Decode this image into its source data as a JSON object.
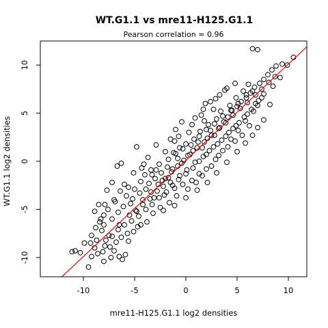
{
  "chart_data": {
    "type": "scatter",
    "title": "WT.G1.1 vs mre11-H125.G1.1",
    "subtitle": "Pearson correlation =  0.96",
    "xlabel": "mre11-H125.G1.1 log2 densities",
    "ylabel": "WT.G1.1 log2 densities",
    "xlim": [
      -14.2,
      11.8
    ],
    "ylim": [
      -12.0,
      12.5
    ],
    "x_ticks": [
      -10,
      -5,
      0,
      5,
      10
    ],
    "y_ticks": [
      -10,
      -5,
      0,
      5,
      10
    ],
    "x_tick_labels": [
      "-10",
      "-5",
      "0",
      "5",
      "10"
    ],
    "y_tick_labels": [
      "-10",
      "-5",
      "0",
      "5",
      "10"
    ],
    "grid": false,
    "point_style": "open-circle",
    "point_color": "#000000",
    "fit_line": {
      "slope": 1.0,
      "intercept": 0.1,
      "color": "#ff0000"
    },
    "series": [
      {
        "points": [
          [
            -9.5,
            -11.0
          ],
          [
            -10.3,
            -9.5
          ],
          [
            -9.2,
            -9.9
          ],
          [
            -8.0,
            -10.4
          ],
          [
            -7.3,
            -10.0
          ],
          [
            -6.2,
            -10.2
          ],
          [
            -6.5,
            -9.9
          ],
          [
            -8.6,
            -9.6
          ],
          [
            -9.9,
            -8.5
          ],
          [
            -7.9,
            -8.8
          ],
          [
            -8.7,
            -8.2
          ],
          [
            -7.0,
            -9.3
          ],
          [
            -5.9,
            -9.7
          ],
          [
            -8.2,
            -7.2
          ],
          [
            -7.5,
            -7.7
          ],
          [
            -9.2,
            -7.7
          ],
          [
            -9.3,
            -8.5
          ],
          [
            -8.0,
            -5.6
          ],
          [
            -8.5,
            -4.5
          ],
          [
            -7.9,
            -4.5
          ],
          [
            -7.0,
            -4.0
          ],
          [
            -7.7,
            -3.0
          ],
          [
            -7.2,
            -2.2
          ],
          [
            -4.8,
            1.5
          ],
          [
            -6.3,
            -0.2
          ],
          [
            -6.7,
            -0.5
          ],
          [
            -5.1,
            -1.2
          ],
          [
            -4.3,
            -0.7
          ],
          [
            -6.0,
            -2.4
          ],
          [
            -5.6,
            -2.7
          ],
          [
            -6.4,
            -3.1
          ],
          [
            -5.2,
            -3.9
          ],
          [
            -3.9,
            -2.9
          ],
          [
            -4.4,
            -2.1
          ],
          [
            -3.3,
            -1.4
          ],
          [
            -2.9,
            -0.9
          ],
          [
            -2.3,
            -2.0
          ],
          [
            -1.8,
            -0.6
          ],
          [
            -1.3,
            -0.8
          ],
          [
            -0.8,
            0.3
          ],
          [
            -0.4,
            -0.2
          ],
          [
            0.2,
            0.6
          ],
          [
            0.7,
            1.1
          ],
          [
            1.2,
            2.0
          ],
          [
            1.6,
            1.4
          ],
          [
            2.1,
            2.4
          ],
          [
            2.4,
            3.2
          ],
          [
            2.8,
            2.7
          ],
          [
            3.3,
            3.5
          ],
          [
            3.7,
            4.1
          ],
          [
            4.1,
            4.6
          ],
          [
            4.5,
            5.3
          ],
          [
            5.0,
            5.7
          ],
          [
            5.4,
            6.2
          ],
          [
            5.9,
            6.6
          ],
          [
            6.3,
            7.1
          ],
          [
            6.7,
            7.7
          ],
          [
            7.2,
            8.1
          ],
          [
            7.6,
            8.5
          ],
          [
            8.0,
            9.0
          ],
          [
            8.4,
            9.5
          ],
          [
            8.8,
            9.9
          ],
          [
            9.4,
            10.1
          ],
          [
            9.9,
            10.0
          ],
          [
            10.5,
            10.8
          ],
          [
            6.5,
            11.7
          ],
          [
            7.0,
            11.6
          ],
          [
            -2.9,
            1.7
          ],
          [
            -1.5,
            2.3
          ],
          [
            -0.7,
            2.6
          ],
          [
            -1.1,
            2.1
          ],
          [
            0.3,
            3.0
          ],
          [
            1.8,
            4.2
          ],
          [
            2.7,
            5.4
          ],
          [
            1.9,
            6.0
          ],
          [
            3.8,
            7.4
          ],
          [
            2.9,
            6.5
          ],
          [
            1.5,
            4.8
          ],
          [
            0.6,
            3.8
          ],
          [
            -2.0,
            1.0
          ],
          [
            -3.7,
            0.4
          ],
          [
            -4.1,
            -0.3
          ],
          [
            -3.1,
            -3.8
          ],
          [
            -2.1,
            -3.5
          ],
          [
            -1.1,
            -2.8
          ],
          [
            -0.3,
            -2.4
          ],
          [
            0.6,
            -2.0
          ],
          [
            1.3,
            -1.3
          ],
          [
            2.0,
            -0.8
          ],
          [
            2.9,
            0.2
          ],
          [
            3.6,
            1.1
          ],
          [
            4.4,
            2.3
          ],
          [
            5.1,
            3.2
          ],
          [
            5.8,
            4.2
          ],
          [
            6.6,
            5.2
          ],
          [
            7.1,
            6.3
          ],
          [
            7.6,
            7.0
          ],
          [
            8.5,
            7.8
          ],
          [
            9.2,
            8.7
          ],
          [
            -5.7,
            -7.5
          ],
          [
            -4.7,
            -6.8
          ],
          [
            -3.8,
            -6.3
          ],
          [
            -3.2,
            -5.4
          ],
          [
            -2.5,
            -4.8
          ],
          [
            -1.6,
            -4.3
          ],
          [
            -0.9,
            -3.6
          ],
          [
            0.2,
            -2.9
          ],
          [
            1.0,
            -2.2
          ],
          [
            1.6,
            -1.5
          ],
          [
            2.5,
            -0.5
          ],
          [
            3.2,
            0.6
          ],
          [
            4.1,
            1.5
          ],
          [
            4.8,
            2.1
          ],
          [
            5.5,
            2.7
          ],
          [
            6.2,
            3.7
          ],
          [
            7.6,
            4.3
          ],
          [
            8.2,
            5.9
          ],
          [
            -7.6,
            -5.0
          ],
          [
            -6.9,
            -4.2
          ],
          [
            -5.8,
            -3.6
          ],
          [
            -5.0,
            -2.9
          ],
          [
            -4.5,
            -3.3
          ],
          [
            -3.6,
            -2.3
          ],
          [
            -3.0,
            -1.8
          ],
          [
            -2.4,
            -1.2
          ],
          [
            -1.7,
            -1.7
          ],
          [
            -1.2,
            0.9
          ],
          [
            -0.6,
            1.4
          ],
          [
            0.0,
            1.8
          ],
          [
            0.8,
            2.3
          ],
          [
            1.4,
            3.1
          ],
          [
            2.2,
            3.8
          ],
          [
            3.0,
            4.4
          ],
          [
            3.4,
            5.2
          ],
          [
            4.3,
            5.8
          ],
          [
            4.9,
            6.6
          ],
          [
            5.6,
            7.3
          ],
          [
            6.1,
            8.0
          ],
          [
            -8.8,
            -6.9
          ],
          [
            -8.4,
            -6.3
          ],
          [
            -7.2,
            -6.0
          ],
          [
            -6.6,
            -5.3
          ],
          [
            -6.1,
            -4.7
          ],
          [
            -5.4,
            -4.4
          ],
          [
            -4.9,
            -5.1
          ],
          [
            -4.2,
            -4.5
          ],
          [
            -3.5,
            -3.9
          ],
          [
            -2.8,
            -3.1
          ],
          [
            -2.2,
            -2.6
          ],
          [
            -1.5,
            -2.2
          ],
          [
            -0.6,
            -1.5
          ],
          [
            0.1,
            -0.9
          ],
          [
            0.9,
            -0.1
          ],
          [
            1.7,
            0.5
          ],
          [
            2.3,
            1.1
          ],
          [
            3.1,
            1.8
          ],
          [
            3.9,
            2.6
          ],
          [
            4.6,
            3.4
          ],
          [
            5.2,
            4.0
          ],
          [
            6.0,
            4.9
          ],
          [
            6.8,
            6.0
          ],
          [
            7.4,
            6.6
          ],
          [
            -7.8,
            -8.2
          ],
          [
            -7.2,
            -7.8
          ],
          [
            -6.6,
            -7.1
          ],
          [
            -6.0,
            -6.6
          ],
          [
            -5.3,
            -6.2
          ],
          [
            -4.6,
            -5.7
          ],
          [
            -3.9,
            -5.0
          ],
          [
            -3.3,
            -4.5
          ],
          [
            -2.6,
            -3.8
          ],
          [
            -1.9,
            -3.2
          ],
          [
            -1.3,
            -2.5
          ],
          [
            -0.7,
            -1.9
          ],
          [
            0.0,
            -1.3
          ],
          [
            0.7,
            -0.7
          ],
          [
            1.3,
            0.0
          ],
          [
            2.0,
            0.7
          ],
          [
            2.7,
            1.5
          ],
          [
            3.5,
            2.2
          ],
          [
            4.2,
            3.0
          ],
          [
            4.9,
            3.7
          ],
          [
            5.7,
            4.6
          ],
          [
            6.4,
            5.4
          ],
          [
            7.0,
            5.8
          ],
          [
            -10.8,
            -9.3
          ],
          [
            -11.1,
            -9.4
          ],
          [
            -8.9,
            -9.0
          ],
          [
            -8.1,
            -9.4
          ],
          [
            -7.4,
            -8.9
          ],
          [
            -6.8,
            -8.4
          ],
          [
            -6.3,
            -7.9
          ],
          [
            -5.6,
            -8.3
          ],
          [
            -5.1,
            -7.3
          ],
          [
            -4.4,
            -6.6
          ],
          [
            -6.5,
            -6.6
          ],
          [
            -5.5,
            -5.6
          ],
          [
            -4.8,
            -5.2
          ],
          [
            -4.2,
            -4.0
          ],
          [
            -3.4,
            -3.2
          ],
          [
            -2.7,
            -2.4
          ],
          [
            -2.0,
            -1.8
          ],
          [
            -1.4,
            -1.1
          ],
          [
            -0.8,
            -0.5
          ],
          [
            -0.2,
            0.1
          ],
          [
            0.4,
            0.7
          ],
          [
            1.1,
            1.4
          ],
          [
            1.8,
            2.0
          ],
          [
            2.5,
            2.7
          ],
          [
            3.2,
            3.4
          ],
          [
            3.9,
            4.0
          ],
          [
            4.6,
            4.8
          ],
          [
            5.3,
            5.5
          ],
          [
            6.0,
            6.1
          ],
          [
            6.8,
            6.9
          ],
          [
            7.4,
            7.5
          ],
          [
            8.1,
            8.2
          ],
          [
            8.7,
            8.8
          ],
          [
            -4.0,
            -1.4
          ],
          [
            -3.4,
            -0.9
          ],
          [
            -2.6,
            -0.3
          ],
          [
            -1.7,
            0.2
          ],
          [
            -1.0,
            0.8
          ],
          [
            -0.3,
            1.3
          ],
          [
            0.5,
            1.7
          ],
          [
            1.3,
            2.6
          ],
          [
            2.0,
            3.3
          ],
          [
            2.8,
            3.9
          ],
          [
            3.6,
            4.7
          ],
          [
            4.4,
            5.3
          ],
          [
            5.1,
            6.0
          ],
          [
            5.9,
            6.9
          ],
          [
            6.5,
            7.3
          ],
          [
            -2.2,
            -5.1
          ],
          [
            -1.1,
            -4.6
          ],
          [
            0.0,
            -3.8
          ],
          [
            1.1,
            -3.0
          ],
          [
            2.1,
            -2.2
          ],
          [
            3.0,
            -1.2
          ],
          [
            4.0,
            -0.1
          ],
          [
            5.0,
            1.0
          ],
          [
            5.8,
            1.9
          ],
          [
            6.5,
            2.7
          ],
          [
            7.0,
            3.5
          ],
          [
            -1.0,
            3.3
          ],
          [
            -0.4,
            4.1
          ],
          [
            0.9,
            4.5
          ],
          [
            1.7,
            5.4
          ],
          [
            2.4,
            6.2
          ],
          [
            3.3,
            6.9
          ],
          [
            4.0,
            7.6
          ],
          [
            4.8,
            8.1
          ],
          [
            -8.9,
            -5.2
          ],
          [
            -8.3,
            -6.0
          ],
          [
            -8.0,
            -6.6
          ]
        ]
      }
    ]
  }
}
